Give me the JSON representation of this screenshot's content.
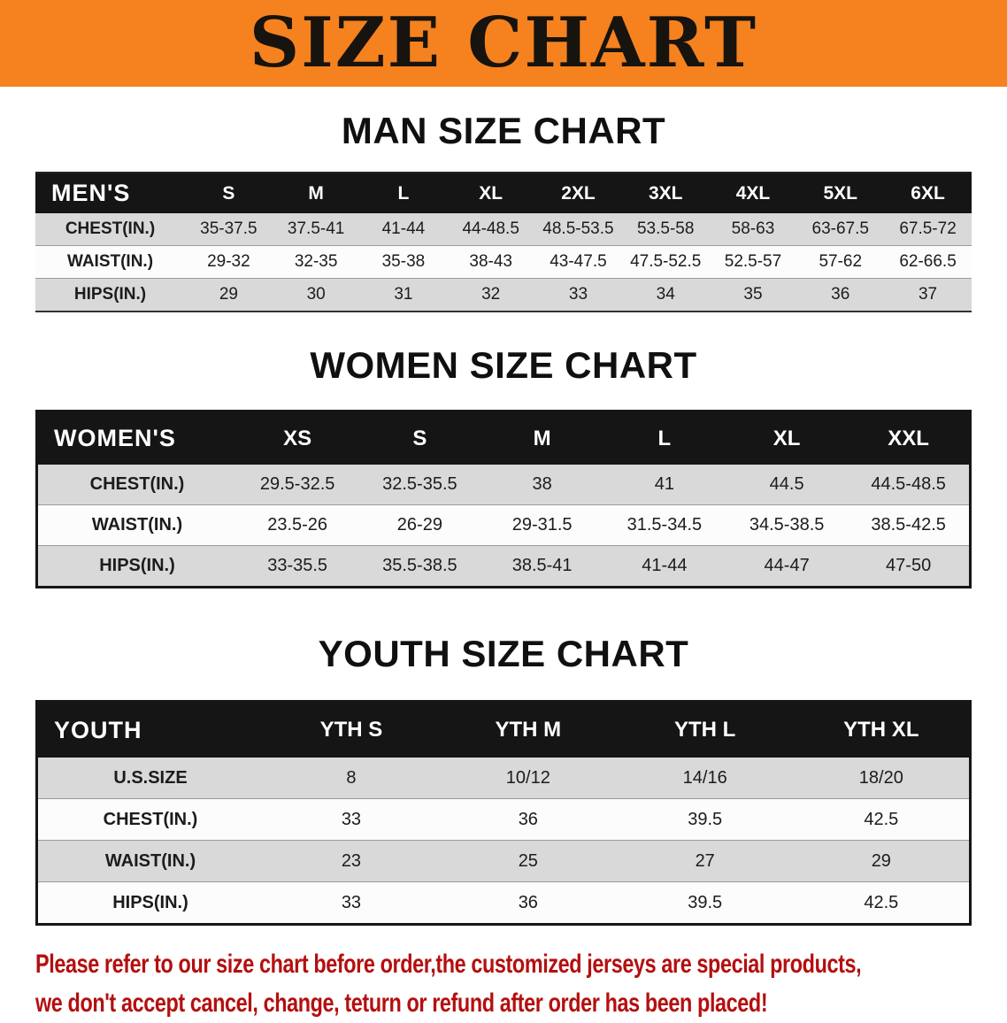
{
  "banner": {
    "title": "SIZE CHART",
    "background_color": "#f5821f",
    "text_color": "#17130e"
  },
  "colors": {
    "table_header_bg": "#151515",
    "table_header_text": "#ffffff",
    "row_stripe_gray": "#d9d9d9",
    "footer_red": "#b40f0f"
  },
  "sections": [
    {
      "id": "men",
      "heading": "MAN SIZE CHART",
      "table": {
        "header": [
          "MEN'S",
          "S",
          "M",
          "L",
          "XL",
          "2XL",
          "3XL",
          "4XL",
          "5XL",
          "6XL"
        ],
        "rows": [
          [
            "CHEST(IN.)",
            "35-37.5",
            "37.5-41",
            "41-44",
            "44-48.5",
            "48.5-53.5",
            "53.5-58",
            "58-63",
            "63-67.5",
            "67.5-72"
          ],
          [
            "WAIST(IN.)",
            "29-32",
            "32-35",
            "35-38",
            "38-43",
            "43-47.5",
            "47.5-52.5",
            "52.5-57",
            "57-62",
            "62-66.5"
          ],
          [
            "HIPS(IN.)",
            "29",
            "30",
            "31",
            "32",
            "33",
            "34",
            "35",
            "36",
            "37"
          ]
        ]
      }
    },
    {
      "id": "women",
      "heading": "WOMEN SIZE CHART",
      "table": {
        "header": [
          "WOMEN'S",
          "XS",
          "S",
          "M",
          "L",
          "XL",
          "XXL"
        ],
        "rows": [
          [
            "CHEST(IN.)",
            "29.5-32.5",
            "32.5-35.5",
            "38",
            "41",
            "44.5",
            "44.5-48.5"
          ],
          [
            "WAIST(IN.)",
            "23.5-26",
            "26-29",
            "29-31.5",
            "31.5-34.5",
            "34.5-38.5",
            "38.5-42.5"
          ],
          [
            "HIPS(IN.)",
            "33-35.5",
            "35.5-38.5",
            "38.5-41",
            "41-44",
            "44-47",
            "47-50"
          ]
        ]
      }
    },
    {
      "id": "youth",
      "heading": "YOUTH SIZE CHART",
      "table": {
        "header": [
          "YOUTH",
          "YTH S",
          "YTH M",
          "YTH L",
          "YTH XL"
        ],
        "rows": [
          [
            "U.S.SIZE",
            "8",
            "10/12",
            "14/16",
            "18/20"
          ],
          [
            "CHEST(IN.)",
            "33",
            "36",
            "39.5",
            "42.5"
          ],
          [
            "WAIST(IN.)",
            "23",
            "25",
            "27",
            "29"
          ],
          [
            "HIPS(IN.)",
            "33",
            "36",
            "39.5",
            "42.5"
          ]
        ]
      }
    }
  ],
  "footer": {
    "lines": [
      "Please refer to our size chart before order,the customized jerseys are special products,",
      "we don't accept cancel, change, teturn or refund after order has been placed!"
    ]
  }
}
